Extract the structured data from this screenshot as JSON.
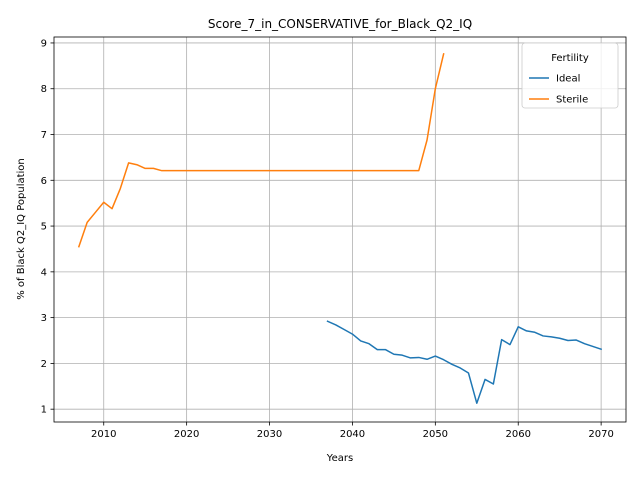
{
  "chart_data": {
    "type": "line",
    "title": "Score_7_in_CONSERVATIVE_for_Black_Q2_IQ",
    "xlabel": "Years",
    "ylabel": "% of Black Q2_IQ Population",
    "xlim": [
      2004,
      2073
    ],
    "ylim": [
      0.72,
      9.13
    ],
    "xticks": [
      2010,
      2020,
      2030,
      2040,
      2050,
      2060,
      2070
    ],
    "yticks": [
      1,
      2,
      3,
      4,
      5,
      6,
      7,
      8,
      9
    ],
    "grid": true,
    "legend": {
      "title": "Fertility",
      "placement": "top-right"
    },
    "series": [
      {
        "name": "Ideal",
        "color": "#1f77b4",
        "x": [
          2037,
          2038,
          2039,
          2040,
          2041,
          2042,
          2043,
          2044,
          2045,
          2046,
          2047,
          2048,
          2049,
          2050,
          2051,
          2052,
          2053,
          2054,
          2055,
          2056,
          2057,
          2058,
          2059,
          2060,
          2061,
          2062,
          2063,
          2064,
          2065,
          2066,
          2067,
          2068,
          2069,
          2070
        ],
        "y": [
          2.92,
          2.84,
          2.74,
          2.64,
          2.49,
          2.43,
          2.3,
          2.3,
          2.2,
          2.18,
          2.12,
          2.13,
          2.09,
          2.16,
          2.08,
          1.98,
          1.9,
          1.79,
          1.13,
          1.65,
          1.55,
          2.52,
          2.41,
          2.8,
          2.71,
          2.68,
          2.6,
          2.58,
          2.55,
          2.5,
          2.51,
          2.43,
          2.37,
          2.31
        ]
      },
      {
        "name": "Sterile",
        "color": "#ff7f0e",
        "x": [
          2007,
          2008,
          2009,
          2010,
          2011,
          2012,
          2013,
          2014,
          2015,
          2016,
          2017,
          2018,
          2019,
          2020,
          2021,
          2022,
          2023,
          2024,
          2025,
          2026,
          2027,
          2028,
          2029,
          2030,
          2031,
          2032,
          2033,
          2034,
          2035,
          2036,
          2037,
          2038,
          2039,
          2040,
          2041,
          2042,
          2043,
          2044,
          2045,
          2046,
          2047,
          2048,
          2049,
          2050,
          2051
        ],
        "y": [
          4.55,
          5.08,
          5.3,
          5.52,
          5.38,
          5.82,
          6.38,
          6.34,
          6.26,
          6.26,
          6.21,
          6.21,
          6.21,
          6.21,
          6.21,
          6.21,
          6.21,
          6.21,
          6.21,
          6.21,
          6.21,
          6.21,
          6.21,
          6.21,
          6.21,
          6.21,
          6.21,
          6.21,
          6.21,
          6.21,
          6.21,
          6.21,
          6.21,
          6.21,
          6.21,
          6.21,
          6.21,
          6.21,
          6.21,
          6.21,
          6.21,
          6.21,
          6.88,
          8.0,
          8.76
        ]
      }
    ]
  }
}
